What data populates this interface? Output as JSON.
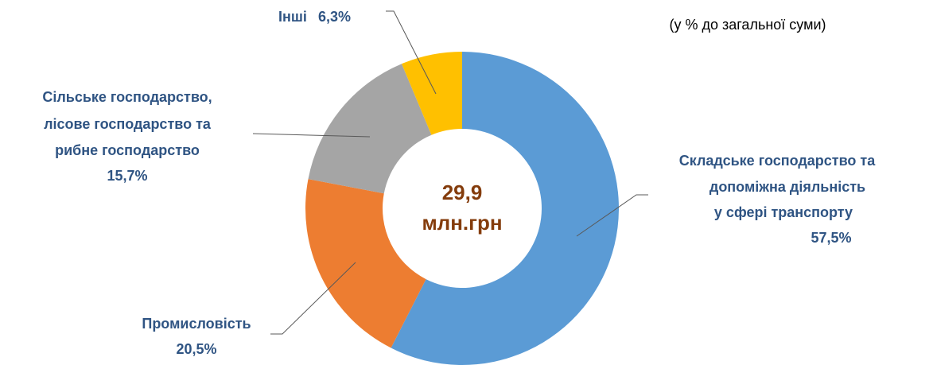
{
  "chart_data": {
    "type": "donut",
    "subtitle": "(у % до загальної суми)",
    "center_lines": [
      "29,9",
      "млн.грн"
    ],
    "categories": [
      [
        "Складське господарство та",
        "допоміжна діяльність",
        "у сфері транспорту"
      ],
      [
        "Промисловість"
      ],
      [
        "Сільське господарство,",
        "лісове господарство та",
        "рибне господарство"
      ],
      [
        "Інші"
      ]
    ],
    "values": [
      57.5,
      20.5,
      15.7,
      6.3
    ],
    "value_labels": [
      "57,5%",
      "20,5%",
      "15,7%",
      "6,3%"
    ],
    "colors": [
      "#5b9bd5",
      "#ed7d31",
      "#a5a5a5",
      "#ffc000"
    ]
  }
}
